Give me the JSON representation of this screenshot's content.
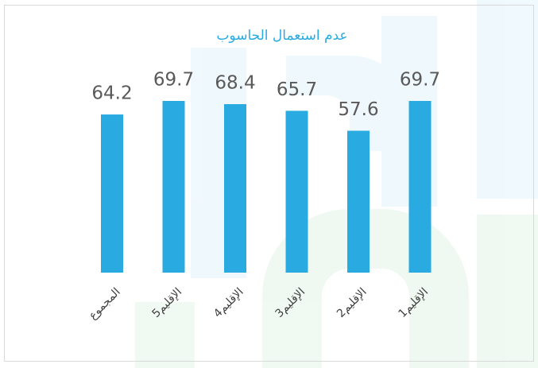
{
  "chart_data": {
    "type": "bar",
    "title": "عدم استعمال الحاسوب",
    "categories": [
      "المجموع",
      "الإقليم5",
      "الإقليم4",
      "الإقليم3",
      "الإقليم2",
      "الإقليم1"
    ],
    "values": [
      64.2,
      69.7,
      68.4,
      65.7,
      57.6,
      69.7
    ],
    "color": "#29abe2"
  }
}
